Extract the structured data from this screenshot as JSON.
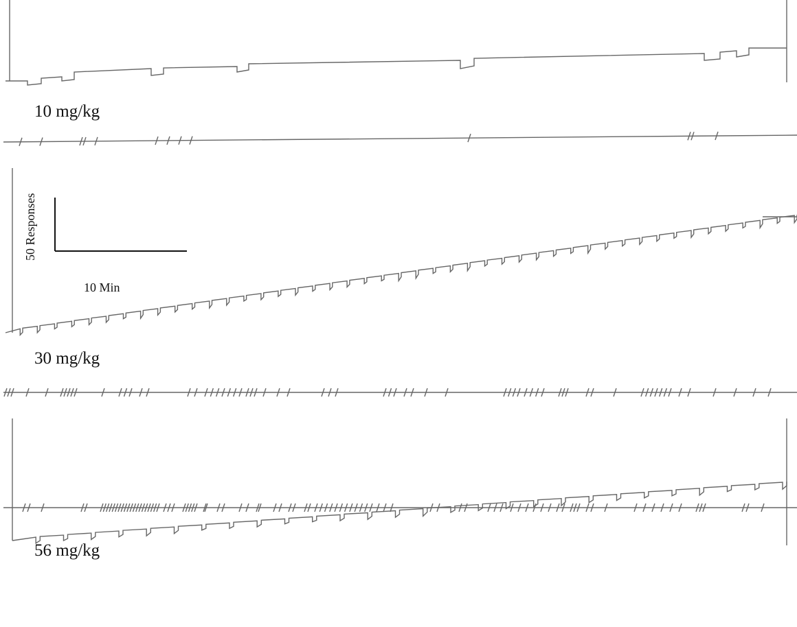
{
  "panels": [
    {
      "label": "10 mg/kg"
    },
    {
      "label": "30 mg/kg"
    },
    {
      "label": "56 mg/kg"
    }
  ],
  "scale_bar": {
    "y_label": "50 Responses",
    "x_label": "10 Min"
  }
}
